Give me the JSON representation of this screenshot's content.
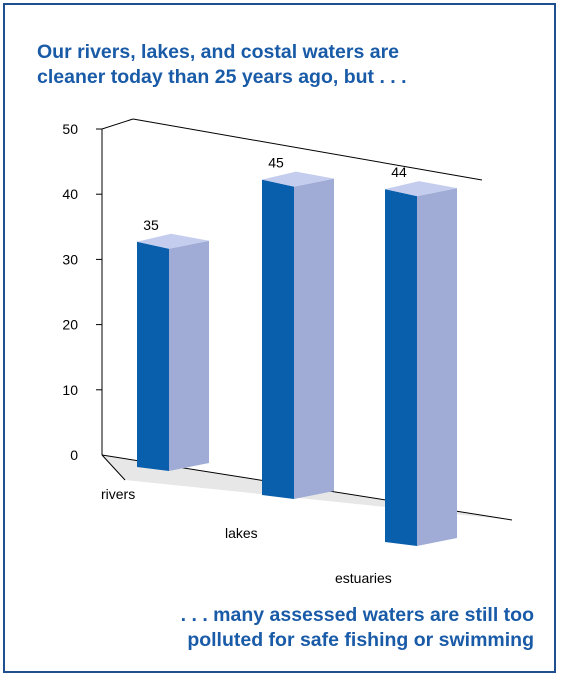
{
  "headline": {
    "line1": "Our rivers, lakes, and costal waters are",
    "line2": "cleaner today than 25 years ago, but . . ."
  },
  "footer": {
    "line1": ". . . many assessed waters are still too",
    "line2": "polluted for safe fishing or swimming"
  },
  "colors": {
    "bar_front": "#0a5fac",
    "bar_side": "#a0acd6",
    "bar_top": "#c4cdee",
    "floor": "#e7e7e7",
    "text_accent": "#1a5ba8",
    "border": "#1f4f8f"
  },
  "chart_data": {
    "type": "bar",
    "style": "3d",
    "categories": [
      "rivers",
      "lakes",
      "estuaries"
    ],
    "values": [
      35,
      45,
      44
    ],
    "data_labels": [
      "35",
      "45",
      "44"
    ],
    "y_ticks": [
      "0",
      "10",
      "20",
      "30",
      "40",
      "50"
    ],
    "ylim": [
      0,
      50
    ],
    "grid": false,
    "legend": "none"
  }
}
